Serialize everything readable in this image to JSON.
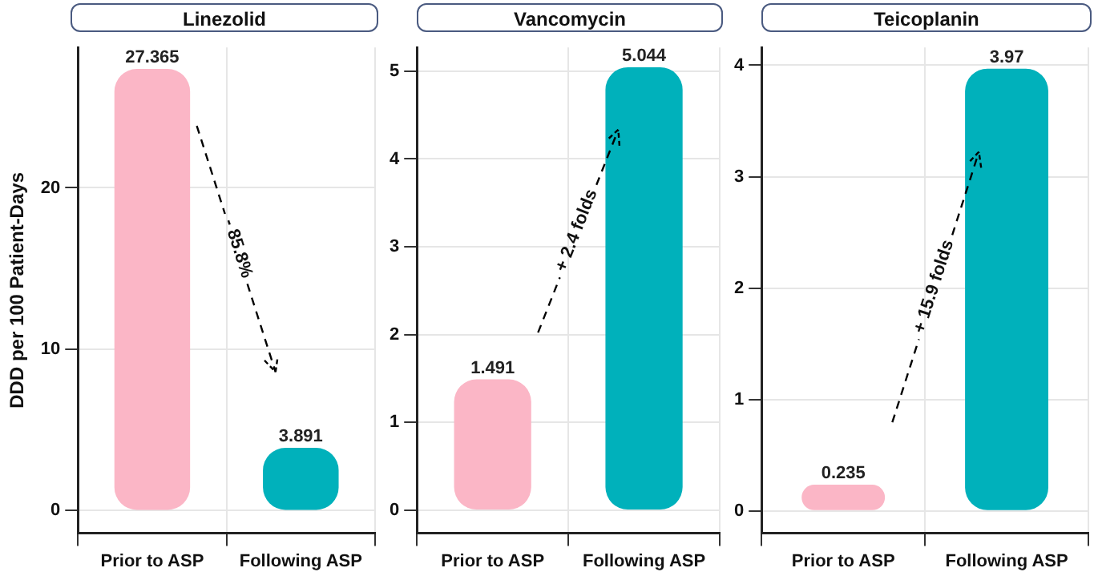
{
  "chart_data": [
    {
      "type": "bar",
      "title": "Linezolid",
      "ylabel": "DDD per 100 Patient-Days",
      "categories": [
        "Prior to ASP",
        "Following ASP"
      ],
      "values": [
        27.365,
        3.891
      ],
      "colors": [
        "#fbb6c6",
        "#00b1bb"
      ],
      "ylim": [
        -1.4,
        28.7
      ],
      "yticks": [
        0,
        10,
        20
      ],
      "grid": true,
      "data_labels": true,
      "annotations": [
        "- 85.8%"
      ]
    },
    {
      "type": "bar",
      "title": "Vancomycin",
      "categories": [
        "Prior to ASP",
        "Following ASP"
      ],
      "values": [
        1.491,
        5.044
      ],
      "colors": [
        "#fbb6c6",
        "#00b1bb"
      ],
      "ylim": [
        -0.26,
        5.27
      ],
      "yticks": [
        0,
        1,
        2,
        3,
        4,
        5
      ],
      "grid": true,
      "data_labels": true,
      "annotations": [
        "+ 2.4 folds"
      ]
    },
    {
      "type": "bar",
      "title": "Teicoplanin",
      "categories": [
        "Prior to ASP",
        "Following ASP"
      ],
      "values": [
        0.235,
        3.97
      ],
      "colors": [
        "#fbb6c6",
        "#00b1bb"
      ],
      "ylim": [
        -0.2,
        4.16
      ],
      "yticks": [
        0,
        1,
        2,
        3,
        4
      ],
      "grid": true,
      "data_labels": true,
      "annotations": [
        "+ 15.9 folds"
      ]
    }
  ]
}
